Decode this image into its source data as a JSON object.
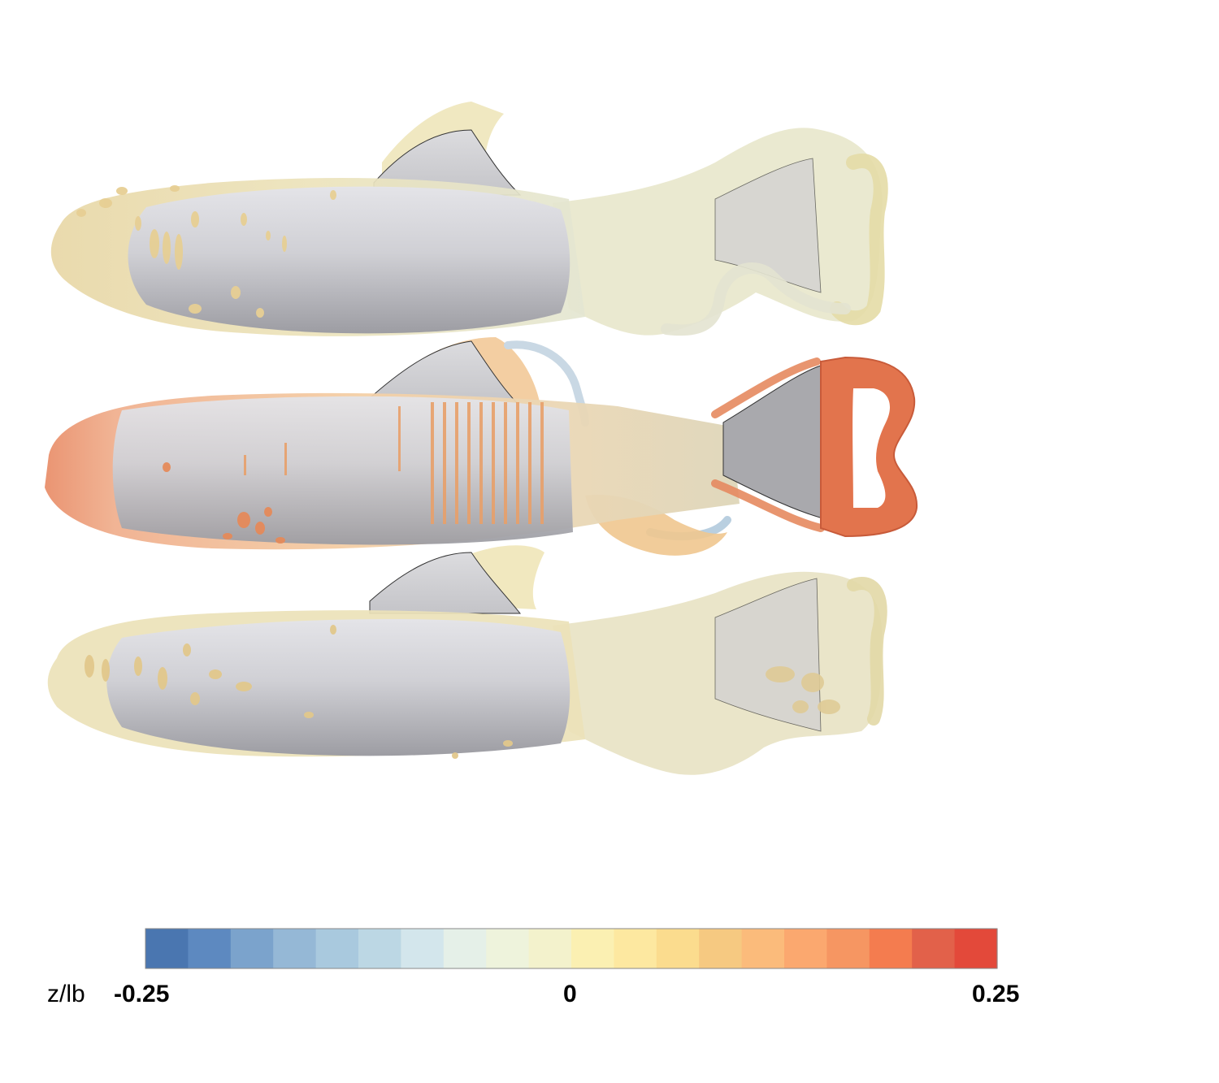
{
  "figure": {
    "colorbar": {
      "variable_label": "z/lb",
      "min_label": "-0.25",
      "mid_label": "0",
      "max_label": "0.25",
      "colors": [
        "#4a76b0",
        "#5d89c0",
        "#7ba3cc",
        "#95b8d6",
        "#a9c9de",
        "#bcd7e4",
        "#d3e6ec",
        "#e5f0e8",
        "#eef3dc",
        "#f3f2cc",
        "#fbf0b2",
        "#fde8a0",
        "#fbdc8e",
        "#f6c981",
        "#fbbb7b",
        "#fba86f",
        "#f69662",
        "#f47c4f",
        "#e2614a",
        "#e3493a"
      ]
    },
    "panels": [
      {
        "name": "top-body",
        "wake_color": "#e9e3b9",
        "tail_color": "#e8e6c6"
      },
      {
        "name": "middle-body",
        "wake_color": "#f2b882",
        "tail_color": "#e06d48"
      },
      {
        "name": "bottom-body",
        "wake_color": "#ecdcaa",
        "tail_color": "#e2ddb2"
      }
    ],
    "body_color": "#cdcdd2"
  }
}
